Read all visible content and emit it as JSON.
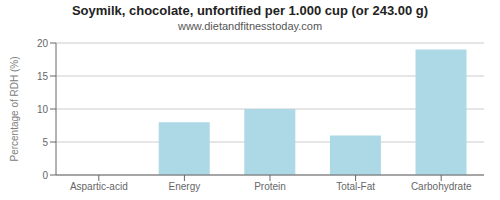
{
  "chart_data": {
    "type": "bar",
    "title": "Soymilk, chocolate, unfortified per 1.000 cup (or 243.00 g)",
    "subtitle": "www.dietandfitnesstoday.com",
    "categories": [
      "Aspartic-acid",
      "Energy",
      "Protein",
      "Total-Fat",
      "Carbohydrate"
    ],
    "values": [
      0,
      8,
      10,
      6,
      19
    ],
    "color": "#add8e6",
    "ylabel": "Percentage of RDH (%)",
    "ylim": [
      0,
      20
    ],
    "yticks": [
      0,
      5,
      10,
      15,
      20
    ],
    "grid": true
  }
}
